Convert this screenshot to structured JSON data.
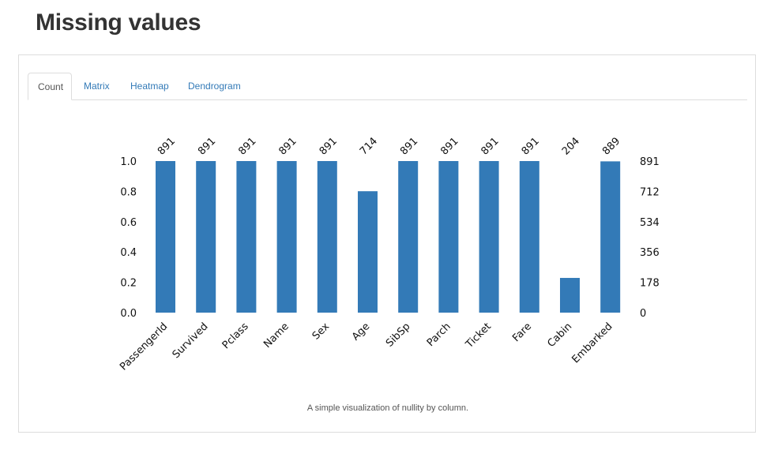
{
  "page": {
    "title": "Missing values"
  },
  "tabs": [
    {
      "label": "Count",
      "active": true
    },
    {
      "label": "Matrix",
      "active": false
    },
    {
      "label": "Heatmap",
      "active": false
    },
    {
      "label": "Dendrogram",
      "active": false
    }
  ],
  "caption": "A simple visualization of nullity by column.",
  "colors": {
    "bar": "#337ab7",
    "tab_link": "#337ab7",
    "text": "#333333"
  },
  "chart_data": {
    "type": "bar",
    "categories": [
      "PassengerId",
      "Survived",
      "Pclass",
      "Name",
      "Sex",
      "Age",
      "SibSp",
      "Parch",
      "Ticket",
      "Fare",
      "Cabin",
      "Embarked"
    ],
    "counts": [
      891,
      891,
      891,
      891,
      891,
      714,
      891,
      891,
      891,
      891,
      204,
      889
    ],
    "total": 891,
    "values": [
      1.0,
      1.0,
      1.0,
      1.0,
      1.0,
      0.801,
      1.0,
      1.0,
      1.0,
      1.0,
      0.229,
      0.998
    ],
    "ylim": [
      0,
      1.0
    ],
    "left_ticks": [
      "0.0",
      "0.2",
      "0.4",
      "0.6",
      "0.8",
      "1.0"
    ],
    "right_ticks": [
      "0",
      "178",
      "356",
      "534",
      "712",
      "891"
    ],
    "xlabel": "",
    "ylabel": ""
  }
}
